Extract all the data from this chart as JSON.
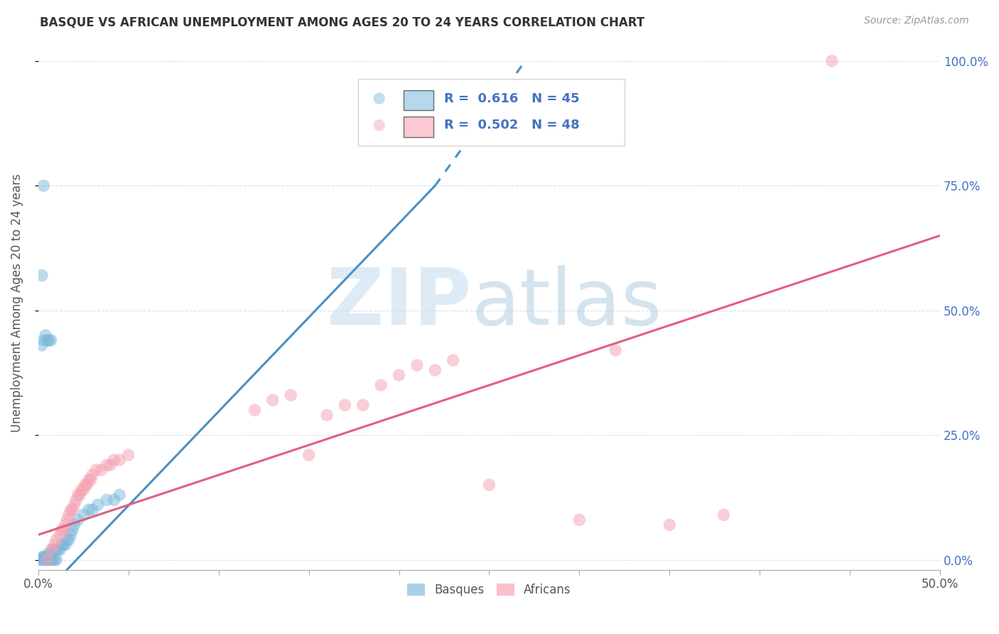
{
  "title": "BASQUE VS AFRICAN UNEMPLOYMENT AMONG AGES 20 TO 24 YEARS CORRELATION CHART",
  "source": "Source: ZipAtlas.com",
  "ylabel": "Unemployment Among Ages 20 to 24 years",
  "xlim": [
    0.0,
    0.5
  ],
  "ylim": [
    -0.02,
    1.05
  ],
  "plot_ylim": [
    0.0,
    1.0
  ],
  "xticks": [
    0.0,
    0.05,
    0.1,
    0.15,
    0.2,
    0.25,
    0.3,
    0.35,
    0.4,
    0.45,
    0.5
  ],
  "xtick_label_left": "0.0%",
  "xtick_label_right": "50.0%",
  "yticks": [
    0.0,
    0.25,
    0.5,
    0.75,
    1.0
  ],
  "yticklabels": [
    "0.0%",
    "25.0%",
    "50.0%",
    "75.0%",
    "100.0%"
  ],
  "basque_color": "#7ab8db",
  "african_color": "#f5a0b0",
  "basque_line_color": "#4a90c4",
  "african_line_color": "#e06080",
  "basque_R": 0.616,
  "basque_N": 45,
  "african_R": 0.502,
  "african_N": 48,
  "legend_text_color": "#4472c4",
  "basque_scatter": [
    [
      0.001,
      0.0
    ],
    [
      0.002,
      0.0
    ],
    [
      0.002,
      0.005
    ],
    [
      0.003,
      0.0
    ],
    [
      0.003,
      0.005
    ],
    [
      0.004,
      0.0
    ],
    [
      0.004,
      0.005
    ],
    [
      0.005,
      0.0
    ],
    [
      0.005,
      0.01
    ],
    [
      0.006,
      0.0
    ],
    [
      0.006,
      0.01
    ],
    [
      0.007,
      0.0
    ],
    [
      0.007,
      0.01
    ],
    [
      0.008,
      0.0
    ],
    [
      0.008,
      0.02
    ],
    [
      0.009,
      0.0
    ],
    [
      0.009,
      0.02
    ],
    [
      0.01,
      0.0
    ],
    [
      0.01,
      0.02
    ],
    [
      0.011,
      0.02
    ],
    [
      0.012,
      0.02
    ],
    [
      0.013,
      0.03
    ],
    [
      0.014,
      0.03
    ],
    [
      0.015,
      0.03
    ],
    [
      0.016,
      0.04
    ],
    [
      0.017,
      0.04
    ],
    [
      0.018,
      0.05
    ],
    [
      0.019,
      0.06
    ],
    [
      0.02,
      0.07
    ],
    [
      0.022,
      0.08
    ],
    [
      0.025,
      0.09
    ],
    [
      0.028,
      0.1
    ],
    [
      0.03,
      0.1
    ],
    [
      0.033,
      0.11
    ],
    [
      0.038,
      0.12
    ],
    [
      0.042,
      0.12
    ],
    [
      0.045,
      0.13
    ],
    [
      0.002,
      0.43
    ],
    [
      0.003,
      0.44
    ],
    [
      0.004,
      0.45
    ],
    [
      0.005,
      0.44
    ],
    [
      0.006,
      0.44
    ],
    [
      0.007,
      0.44
    ],
    [
      0.002,
      0.57
    ],
    [
      0.003,
      0.75
    ]
  ],
  "african_scatter": [
    [
      0.005,
      0.0
    ],
    [
      0.007,
      0.02
    ],
    [
      0.009,
      0.03
    ],
    [
      0.01,
      0.04
    ],
    [
      0.012,
      0.05
    ],
    [
      0.013,
      0.06
    ],
    [
      0.014,
      0.06
    ],
    [
      0.015,
      0.07
    ],
    [
      0.016,
      0.08
    ],
    [
      0.017,
      0.09
    ],
    [
      0.018,
      0.1
    ],
    [
      0.019,
      0.1
    ],
    [
      0.02,
      0.11
    ],
    [
      0.021,
      0.12
    ],
    [
      0.022,
      0.13
    ],
    [
      0.023,
      0.13
    ],
    [
      0.024,
      0.14
    ],
    [
      0.025,
      0.14
    ],
    [
      0.026,
      0.15
    ],
    [
      0.027,
      0.15
    ],
    [
      0.028,
      0.16
    ],
    [
      0.029,
      0.16
    ],
    [
      0.03,
      0.17
    ],
    [
      0.032,
      0.18
    ],
    [
      0.035,
      0.18
    ],
    [
      0.038,
      0.19
    ],
    [
      0.04,
      0.19
    ],
    [
      0.042,
      0.2
    ],
    [
      0.045,
      0.2
    ],
    [
      0.05,
      0.21
    ],
    [
      0.12,
      0.3
    ],
    [
      0.13,
      0.32
    ],
    [
      0.14,
      0.33
    ],
    [
      0.15,
      0.21
    ],
    [
      0.16,
      0.29
    ],
    [
      0.17,
      0.31
    ],
    [
      0.18,
      0.31
    ],
    [
      0.19,
      0.35
    ],
    [
      0.2,
      0.37
    ],
    [
      0.21,
      0.39
    ],
    [
      0.22,
      0.38
    ],
    [
      0.23,
      0.4
    ],
    [
      0.25,
      0.15
    ],
    [
      0.3,
      0.08
    ],
    [
      0.32,
      0.42
    ],
    [
      0.35,
      0.07
    ],
    [
      0.38,
      0.09
    ],
    [
      0.44,
      1.0
    ]
  ],
  "basque_line": [
    [
      0.0,
      -0.08
    ],
    [
      0.27,
      1.0
    ]
  ],
  "basque_line_solid": [
    [
      0.0,
      -0.08
    ],
    [
      0.22,
      0.75
    ]
  ],
  "basque_line_dotted": [
    [
      0.22,
      0.75
    ],
    [
      0.27,
      1.0
    ]
  ],
  "african_line": [
    [
      0.0,
      0.05
    ],
    [
      0.5,
      0.65
    ]
  ],
  "watermark_zip_color": "#c8dff0",
  "watermark_atlas_color": "#a0c4dc",
  "axis_label_color": "#4472c4",
  "title_color": "#333333",
  "source_color": "#999999",
  "grid_color": "#dddddd",
  "spine_color": "#aaaaaa"
}
